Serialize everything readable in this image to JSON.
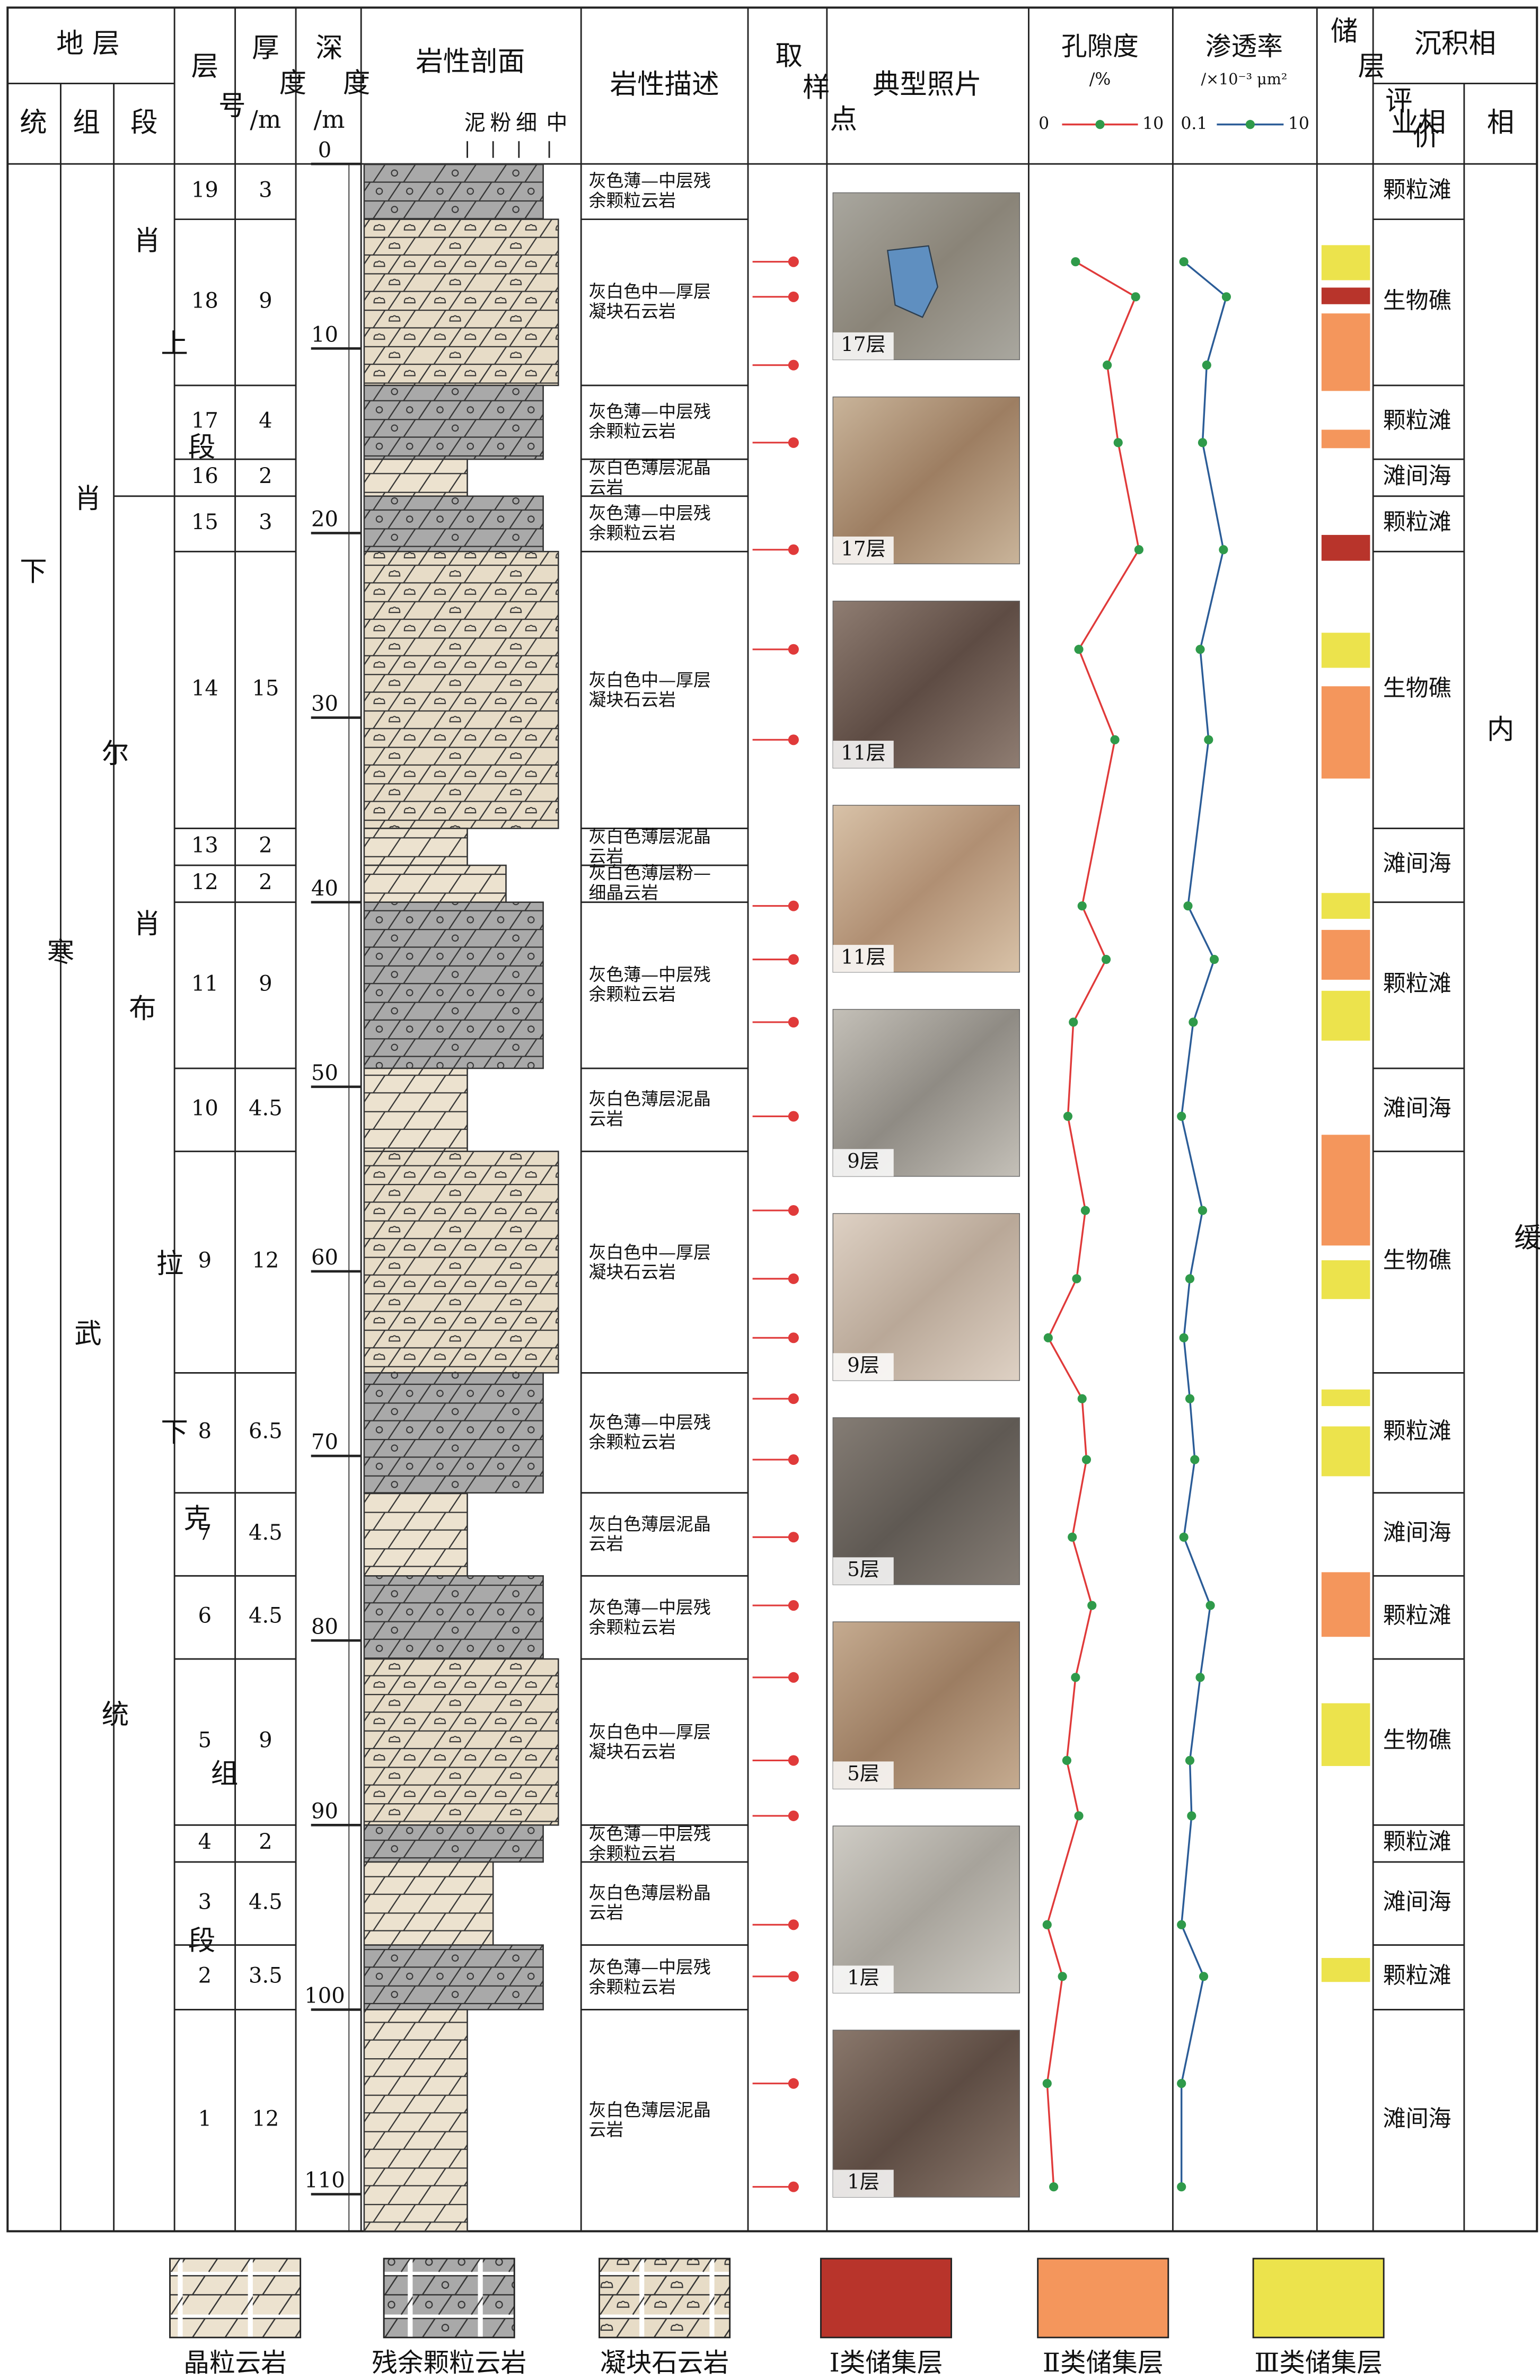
{
  "header": {
    "strata": "地 层",
    "series": "统",
    "formation": "组",
    "member": "段",
    "layer_no": "层号",
    "thickness": "厚度",
    "thickness_unit": "/m",
    "depth": "深度",
    "depth_unit": "/m",
    "profile": "岩性剖面",
    "grain_scale": [
      "泥",
      "粉",
      "细",
      "中"
    ],
    "description": "岩性描述",
    "samples": "取样点",
    "photos": "典型照片",
    "porosity": "孔隙度",
    "porosity_unit": "/%",
    "permeability": "渗透率",
    "permeability_unit": "/×10⁻³ μm²",
    "reservoir": "储层评价",
    "facies": "沉积相",
    "subfacies": "业相",
    "facies_col": "相"
  },
  "strata": {
    "series": "下寒武统",
    "formation": "肖尔布拉克组",
    "members": [
      {
        "name": "肖上段",
        "top": 0,
        "base": 18
      },
      {
        "name": "肖下段",
        "top": 18,
        "base": 112
      }
    ],
    "facies": "内缓坡"
  },
  "depth_ticks": [
    0,
    10,
    20,
    30,
    40,
    50,
    60,
    70,
    80,
    90,
    100,
    110
  ],
  "layers": [
    {
      "no": 19,
      "thickness": 3,
      "legend": 1,
      "description": "灰色薄—中层残余颗粒云岩"
    },
    {
      "no": 18,
      "thickness": 9,
      "legend": 2,
      "description": "灰白色中—厚层凝块石云岩"
    },
    {
      "no": 17,
      "thickness": 4,
      "legend": 1,
      "description": "灰色薄—中层残余颗粒云岩"
    },
    {
      "no": 16,
      "thickness": 2,
      "legend": 0,
      "grain": [
        0
      ],
      "description": "灰白色薄层泥晶云岩"
    },
    {
      "no": 15,
      "thickness": 3,
      "legend": 1,
      "description": "灰色薄—中层残余颗粒云岩"
    },
    {
      "no": 14,
      "thickness": 15,
      "legend": 2,
      "description": "灰白色中—厚层凝块石云岩"
    },
    {
      "no": 13,
      "thickness": 2,
      "legend": 0,
      "grain": [
        0
      ],
      "description": "灰白色薄层泥晶云岩"
    },
    {
      "no": 12,
      "thickness": 2,
      "legend": 0,
      "grain": [
        1,
        2
      ],
      "description": "灰白色薄层粉—细晶云岩"
    },
    {
      "no": 11,
      "thickness": 9,
      "legend": 1,
      "description": "灰色薄—中层残余颗粒云岩"
    },
    {
      "no": 10,
      "thickness": 4.5,
      "legend": 0,
      "grain": [
        0
      ],
      "description": "灰白色薄层泥晶云岩"
    },
    {
      "no": 9,
      "thickness": 12,
      "legend": 2,
      "description": "灰白色中—厚层凝块石云岩"
    },
    {
      "no": 8,
      "thickness": 6.5,
      "legend": 1,
      "description": "灰色薄—中层残余颗粒云岩"
    },
    {
      "no": 7,
      "thickness": 4.5,
      "legend": 0,
      "grain": [
        0
      ],
      "description": "灰白色薄层泥晶云岩"
    },
    {
      "no": 6,
      "thickness": 4.5,
      "legend": 1,
      "description": "灰色薄—中层残余颗粒云岩"
    },
    {
      "no": 5,
      "thickness": 9,
      "legend": 2,
      "description": "灰白色中—厚层凝块石云岩"
    },
    {
      "no": 4,
      "thickness": 2,
      "legend": 1,
      "description": "灰色薄—中层残余颗粒云岩"
    },
    {
      "no": 3,
      "thickness": 4.5,
      "legend": 0,
      "grain": [
        1
      ],
      "description": "灰白色薄层粉晶云岩"
    },
    {
      "no": 2,
      "thickness": 3.5,
      "legend": 1,
      "description": "灰色薄—中层残余颗粒云岩"
    },
    {
      "no": 1,
      "thickness": 12,
      "legend": 0,
      "grain": [
        0
      ],
      "description": "灰白色薄层泥晶云岩"
    }
  ],
  "subfacies": [
    {
      "name": "颗粒滩",
      "top": 0,
      "base": 3
    },
    {
      "name": "生物礁",
      "top": 3,
      "base": 12
    },
    {
      "name": "颗粒滩",
      "top": 12,
      "base": 16
    },
    {
      "name": "滩间海",
      "top": 16,
      "base": 18
    },
    {
      "name": "颗粒滩",
      "top": 18,
      "base": 21
    },
    {
      "name": "生物礁",
      "top": 21,
      "base": 36
    },
    {
      "name": "滩间海",
      "top": 36,
      "base": 40
    },
    {
      "name": "颗粒滩",
      "top": 40,
      "base": 49
    },
    {
      "name": "滩间海",
      "top": 49,
      "base": 53.5
    },
    {
      "name": "生物礁",
      "top": 53.5,
      "base": 65.5
    },
    {
      "name": "颗粒滩",
      "top": 65.5,
      "base": 72
    },
    {
      "name": "滩间海",
      "top": 72,
      "base": 76.5
    },
    {
      "name": "颗粒滩",
      "top": 76.5,
      "base": 81
    },
    {
      "name": "生物礁",
      "top": 81,
      "base": 90
    },
    {
      "name": "颗粒滩",
      "top": 90,
      "base": 92
    },
    {
      "name": "滩间海",
      "top": 92,
      "base": 96.5
    },
    {
      "name": "颗粒滩",
      "top": 96.5,
      "base": 100
    },
    {
      "name": "滩间海",
      "top": 100,
      "base": 112
    }
  ],
  "samples": {
    "depth": [
      5.3,
      7.2,
      10.9,
      15.1,
      20.9,
      26.3,
      31.2,
      40.2,
      43.1,
      46.5,
      51.6,
      56.7,
      60.4,
      63.6,
      66.9,
      70.2,
      74.4,
      78.1,
      82.0,
      86.5,
      89.5,
      95.4,
      98.2,
      104.0,
      109.6
    ],
    "porosity": [
      2.9,
      8.4,
      5.8,
      6.8,
      8.7,
      3.2,
      6.5,
      3.5,
      5.7,
      2.7,
      2.2,
      3.8,
      3.0,
      0.4,
      3.5,
      3.9,
      2.6,
      4.4,
      2.9,
      2.1,
      3.2,
      0.3,
      1.7,
      0.3,
      0.9
    ],
    "permeability": [
      0.12,
      0.58,
      0.28,
      0.24,
      0.52,
      0.22,
      0.3,
      0.14,
      0.37,
      0.17,
      0.11,
      0.24,
      0.15,
      0.12,
      0.15,
      0.18,
      0.12,
      0.32,
      0.22,
      0.15,
      0.16,
      0.11,
      0.25,
      0.11,
      0.11
    ]
  },
  "porosity_axis": {
    "xlim": [
      0,
      10
    ],
    "xticks": [
      0,
      10
    ],
    "color": "#e03a3a"
  },
  "permeability_axis": {
    "xlim": [
      0.1,
      10
    ],
    "xticks": [
      0.1,
      10
    ],
    "log": true,
    "color": "#2b5c97",
    "marker_color": "#2f9a4a"
  },
  "sample_color": "#e03a3a",
  "reservoirs": [
    {
      "top": 4.4,
      "base": 6.3,
      "legend": 5
    },
    {
      "top": 6.7,
      "base": 7.6,
      "legend": 3
    },
    {
      "top": 8.1,
      "base": 12.3,
      "legend": 4
    },
    {
      "top": 14.4,
      "base": 15.4,
      "legend": 4
    },
    {
      "top": 20.1,
      "base": 21.5,
      "legend": 3
    },
    {
      "top": 25.4,
      "base": 27.3,
      "legend": 5
    },
    {
      "top": 28.3,
      "base": 33.3,
      "legend": 4
    },
    {
      "top": 39.5,
      "base": 40.9,
      "legend": 5
    },
    {
      "top": 41.5,
      "base": 44.2,
      "legend": 4
    },
    {
      "top": 44.8,
      "base": 47.5,
      "legend": 5
    },
    {
      "top": 52.6,
      "base": 58.6,
      "legend": 4
    },
    {
      "top": 59.4,
      "base": 61.5,
      "legend": 5
    },
    {
      "top": 66.4,
      "base": 67.3,
      "legend": 5
    },
    {
      "top": 68.4,
      "base": 71.1,
      "legend": 5
    },
    {
      "top": 76.3,
      "base": 79.8,
      "legend": 4
    },
    {
      "top": 83.4,
      "base": 86.8,
      "legend": 5
    },
    {
      "top": 97.2,
      "base": 98.5,
      "legend": 5
    }
  ],
  "photos": [
    "17层",
    "17层",
    "11层",
    "11层",
    "9层",
    "9层",
    "5层",
    "5层",
    "1层",
    "1层"
  ],
  "legend": [
    {
      "label": "晶粒云岩",
      "color": "#ece2cf"
    },
    {
      "label": "残余颗粒云岩",
      "color": "#a9a9a9"
    },
    {
      "label": "凝块石云岩",
      "color": "#e7dcc7"
    },
    {
      "label": "Ⅰ类储集层",
      "color": "#b8342b"
    },
    {
      "label": "Ⅱ类储集层",
      "color": "#f4965c"
    },
    {
      "label": "Ⅲ类储集层",
      "color": "#ece34c"
    }
  ]
}
